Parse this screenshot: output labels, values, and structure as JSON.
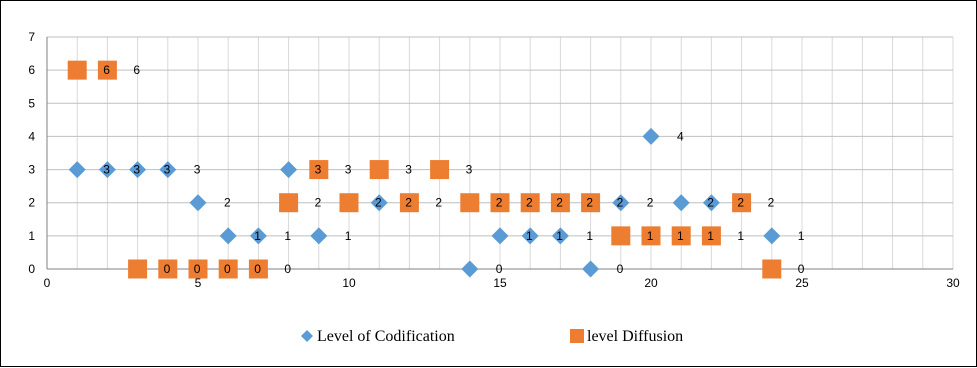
{
  "chart_data": {
    "type": "scatter",
    "title": "",
    "xlabel": "",
    "ylabel": "",
    "xlim": [
      0,
      30
    ],
    "ylim": [
      0,
      7
    ],
    "x_ticks": [
      "0",
      "5",
      "10",
      "15",
      "20",
      "25",
      "30"
    ],
    "y_ticks": [
      "0",
      "1",
      "2",
      "3",
      "4",
      "5",
      "6",
      "7"
    ],
    "grid": true,
    "legend_position": "bottom",
    "series": [
      {
        "name": "Level of Codification",
        "marker": "diamond",
        "color": "#5B9BD5",
        "x": [
          1,
          2,
          3,
          4,
          5,
          6,
          7,
          8,
          9,
          11,
          14,
          15,
          16,
          17,
          18,
          19,
          20,
          21,
          22,
          24
        ],
        "y": [
          3,
          3,
          3,
          3,
          2,
          1,
          1,
          3,
          1,
          2,
          0,
          1,
          1,
          1,
          0,
          2,
          4,
          2,
          2,
          1
        ]
      },
      {
        "name": "level Diffusion",
        "marker": "square",
        "color": "#ED7D31",
        "x": [
          1,
          2,
          3,
          4,
          5,
          6,
          7,
          8,
          9,
          10,
          11,
          12,
          13,
          14,
          15,
          16,
          17,
          18,
          19,
          20,
          21,
          22,
          23,
          24
        ],
        "y": [
          6,
          6,
          0,
          0,
          0,
          0,
          0,
          2,
          3,
          2,
          3,
          2,
          3,
          2,
          2,
          2,
          2,
          2,
          1,
          1,
          1,
          1,
          2,
          0
        ]
      }
    ]
  }
}
